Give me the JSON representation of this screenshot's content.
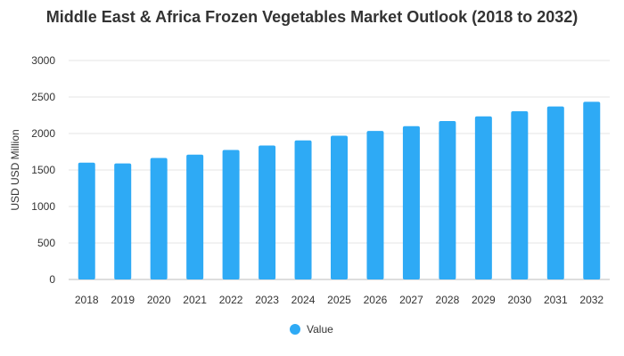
{
  "chart_data": {
    "type": "bar",
    "title": "Middle East & Africa Frozen Vegetables Market Outlook (2018 to 2032)",
    "xlabel": "",
    "ylabel": "USD USD Million",
    "ylim": [
      0,
      3000
    ],
    "yticks": [
      0,
      500,
      1000,
      1500,
      2000,
      2500,
      3000
    ],
    "grid": true,
    "legend_position": "bottom",
    "bar_color": "#2eaaf5",
    "categories": [
      "2018",
      "2019",
      "2020",
      "2021",
      "2022",
      "2023",
      "2024",
      "2025",
      "2026",
      "2027",
      "2028",
      "2029",
      "2030",
      "2031",
      "2032"
    ],
    "series": [
      {
        "name": "Value",
        "values": [
          1600,
          1590,
          1665,
          1710,
          1775,
          1835,
          1905,
          1970,
          2035,
          2100,
          2170,
          2235,
          2305,
          2370,
          2435
        ]
      }
    ]
  }
}
